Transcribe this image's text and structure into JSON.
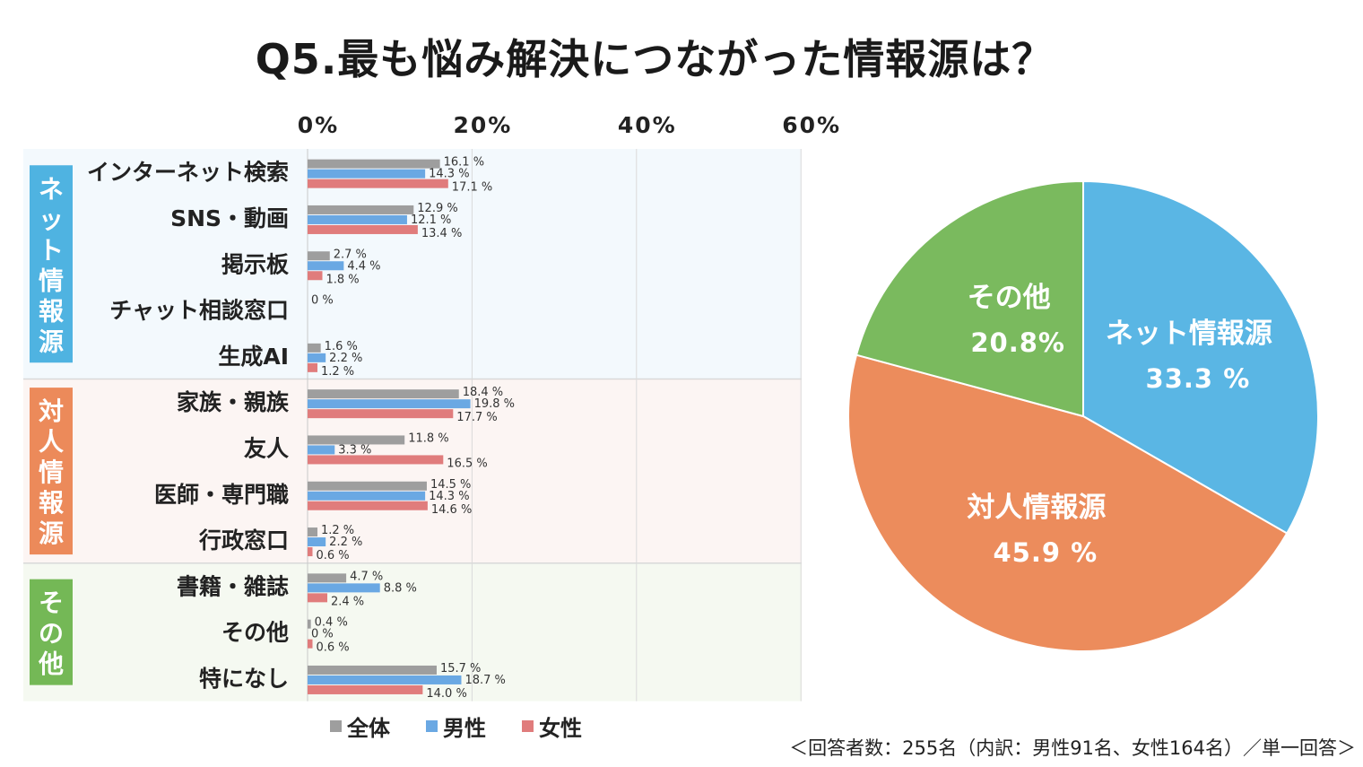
{
  "title": "Q5.最も悩み解決につながった情報源は？",
  "note": "＜回答者数：255名（内訳：男性91名、女性164名）／単一回答＞",
  "colors": {
    "all": "#9e9e9e",
    "male": "#6aa8e3",
    "female": "#e07c7c",
    "net_bg": "#f3f9fd",
    "person_bg": "#fcf5f3",
    "other_bg": "#f5f9f1",
    "net_label": "#4fb3e1",
    "person_label": "#ec8a5a",
    "other_label": "#74b856"
  },
  "legend": [
    {
      "label": "全体",
      "color": "#9e9e9e"
    },
    {
      "label": "男性",
      "color": "#6aa8e3"
    },
    {
      "label": "女性",
      "color": "#e07c7c"
    }
  ],
  "chart_data": [
    {
      "type": "bar",
      "orientation": "horizontal",
      "xlim": [
        0,
        60
      ],
      "x_ticks": [
        "0%",
        "20%",
        "40%",
        "60%"
      ],
      "x_tick_values": [
        0,
        20,
        40,
        60
      ],
      "groups": [
        {
          "label": "ネット情報源",
          "categories": [
            "インターネット検索",
            "SNS・動画",
            "掲示板",
            "チャット相談窓口",
            "生成AI"
          ]
        },
        {
          "label": "対人情報源",
          "categories": [
            "家族・親族",
            "友人",
            "医師・専門職",
            "行政窓口"
          ]
        },
        {
          "label": "その他",
          "categories": [
            "書籍・雑誌",
            "その他",
            "特になし"
          ]
        }
      ],
      "categories": [
        "インターネット検索",
        "SNS・動画",
        "掲示板",
        "チャット相談窓口",
        "生成AI",
        "家族・親族",
        "友人",
        "医師・専門職",
        "行政窓口",
        "書籍・雑誌",
        "その他",
        "特になし"
      ],
      "series": [
        {
          "name": "全体",
          "values": [
            16.1,
            12.9,
            2.7,
            0,
            1.6,
            18.4,
            11.8,
            14.5,
            1.2,
            4.7,
            0.4,
            15.7
          ],
          "value_labels": [
            "16.1 %",
            "12.9 %",
            "2.7 %",
            "0 %",
            "1.6 %",
            "18.4 %",
            "11.8 %",
            "14.5 %",
            "1.2 %",
            "4.7 %",
            "0.4 %",
            "15.7 %"
          ]
        },
        {
          "name": "男性",
          "values": [
            14.3,
            12.1,
            4.4,
            0,
            2.2,
            19.8,
            3.3,
            14.3,
            2.2,
            8.8,
            0,
            18.7
          ],
          "value_labels": [
            "14.3 %",
            "12.1 %",
            "4.4 %",
            "",
            "2.2 %",
            "19.8 %",
            "3.3 %",
            "14.3 %",
            "2.2 %",
            "8.8 %",
            "0 %",
            "18.7 %"
          ]
        },
        {
          "name": "女性",
          "values": [
            17.1,
            13.4,
            1.8,
            0,
            1.2,
            17.7,
            16.5,
            14.6,
            0.6,
            2.4,
            0.6,
            14.0
          ],
          "value_labels": [
            "17.1 %",
            "13.4 %",
            "1.8 %",
            "",
            "1.2 %",
            "17.7 %",
            "16.5 %",
            "14.6 %",
            "0.6 %",
            "2.4 %",
            "0.6 %",
            "14.0 %"
          ]
        }
      ],
      "grid": true
    },
    {
      "type": "pie",
      "slices": [
        {
          "label": "ネット情報源",
          "value": 33.3,
          "value_label": "33.3 %",
          "color": "#5ab6e4"
        },
        {
          "label": "対人情報源",
          "value": 45.9,
          "value_label": "45.9 %",
          "color": "#ec8c5c"
        },
        {
          "label": "その他",
          "value": 20.8,
          "value_label": "20.8%",
          "color": "#7aba5e"
        }
      ],
      "start": "12 o'clock",
      "direction": "clockwise"
    }
  ]
}
